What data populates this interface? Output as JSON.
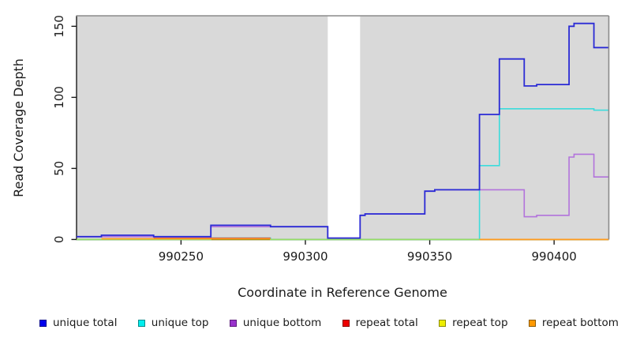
{
  "chart_data": {
    "type": "line",
    "subtype": "step-coverage-plot",
    "title": "",
    "xlabel": "Coordinate in Reference Genome",
    "ylabel": "Read Coverage Depth",
    "xlim": [
      990208,
      990422
    ],
    "ylim": [
      0,
      157.4
    ],
    "xticks": [
      990250,
      990300,
      990350,
      990400
    ],
    "yticks": [
      0,
      50,
      100,
      150
    ],
    "grid": false,
    "legend_position": "bottom",
    "panel_background": "#D9D9D9",
    "box_border_color": "#8A8A8A",
    "axis_color": "#1a1a1a",
    "gap_region": {
      "from": 990309,
      "to": 990322,
      "color": "#FFFFFF"
    },
    "series": [
      {
        "name": "unique top",
        "color": "#3CDCDC",
        "opacity": 1,
        "width": 1.6,
        "segments": [
          [
            [
              990208,
              0
            ],
            [
              990262,
              0
            ],
            [
              990262,
              1
            ],
            [
              990286,
              1
            ],
            [
              990286,
              0
            ],
            [
              990370,
              0
            ],
            [
              990370,
              52
            ],
            [
              990378,
              52
            ],
            [
              990378,
              92
            ],
            [
              990416,
              92
            ],
            [
              990416,
              91
            ],
            [
              990422,
              91
            ]
          ]
        ]
      },
      {
        "name": "repeat top",
        "color": "#E2E200",
        "opacity": 0.55,
        "width": 1.6,
        "segments": [
          [
            [
              990208,
              0
            ],
            [
              990422,
              0
            ]
          ]
        ]
      },
      {
        "name": "repeat total",
        "color": "#E03038",
        "opacity": 0.85,
        "width": 1.4,
        "segments": [
          [
            [
              990239,
              1
            ],
            [
              990286,
              1
            ]
          ]
        ]
      },
      {
        "name": "unique bottom",
        "color": "#B273DC",
        "opacity": 1,
        "width": 1.6,
        "segments": [
          [
            [
              990208,
              2
            ],
            [
              990239,
              2
            ],
            [
              990262,
              2
            ],
            [
              990262,
              9
            ],
            [
              990309,
              9
            ],
            [
              990309,
              1
            ],
            [
              990322,
              1
            ],
            [
              990322,
              17
            ],
            [
              990324,
              17
            ],
            [
              990324,
              18
            ],
            [
              990348,
              18
            ],
            [
              990348,
              34
            ],
            [
              990352,
              34
            ],
            [
              990352,
              35
            ],
            [
              990388,
              35
            ],
            [
              990388,
              16
            ],
            [
              990393,
              16
            ],
            [
              990393,
              17
            ],
            [
              990406,
              17
            ],
            [
              990406,
              58
            ],
            [
              990408,
              58
            ],
            [
              990408,
              60
            ],
            [
              990416,
              60
            ],
            [
              990416,
              44
            ],
            [
              990422,
              44
            ]
          ]
        ]
      },
      {
        "name": "unique total",
        "color": "#2B2BD5",
        "opacity": 1,
        "width": 1.8,
        "segments": [
          [
            [
              990208,
              2
            ],
            [
              990218,
              2
            ],
            [
              990218,
              3
            ],
            [
              990239,
              3
            ],
            [
              990239,
              2
            ],
            [
              990262,
              2
            ],
            [
              990262,
              10
            ],
            [
              990286,
              10
            ],
            [
              990286,
              9
            ],
            [
              990309,
              9
            ],
            [
              990309,
              1
            ],
            [
              990322,
              1
            ],
            [
              990322,
              17
            ],
            [
              990324,
              17
            ],
            [
              990324,
              18
            ],
            [
              990348,
              18
            ],
            [
              990348,
              34
            ],
            [
              990352,
              34
            ],
            [
              990352,
              35
            ],
            [
              990370,
              35
            ],
            [
              990370,
              88
            ],
            [
              990378,
              88
            ],
            [
              990378,
              127
            ],
            [
              990388,
              127
            ],
            [
              990388,
              108
            ],
            [
              990393,
              108
            ],
            [
              990393,
              109
            ],
            [
              990406,
              109
            ],
            [
              990406,
              150
            ],
            [
              990408,
              150
            ],
            [
              990408,
              152
            ],
            [
              990416,
              152
            ],
            [
              990416,
              135
            ],
            [
              990422,
              135
            ]
          ]
        ]
      },
      {
        "name": "repeat bottom",
        "color": "#FF9C1E",
        "opacity": 1,
        "width": 1.8,
        "segments": [
          [
            [
              990218,
              0.5
            ],
            [
              990286,
              0.5
            ]
          ],
          [
            [
              990370,
              0
            ],
            [
              990422,
              0
            ]
          ]
        ]
      }
    ]
  },
  "axes": {
    "xlabel": "Coordinate in Reference Genome",
    "ylabel": "Read Coverage Depth"
  },
  "legend": {
    "items": [
      {
        "label": "unique total",
        "fill": "#0000EE",
        "border": "#00008B"
      },
      {
        "label": "unique top",
        "fill": "#00EEEE",
        "border": "#008B8B"
      },
      {
        "label": "unique bottom",
        "fill": "#9932CC",
        "border": "#5E1C7E"
      },
      {
        "label": "repeat total",
        "fill": "#EE0000",
        "border": "#8B0000"
      },
      {
        "label": "repeat top",
        "fill": "#EEEE00",
        "border": "#8B8B00"
      },
      {
        "label": "repeat bottom",
        "fill": "#FF9900",
        "border": "#8B5A00"
      }
    ]
  }
}
